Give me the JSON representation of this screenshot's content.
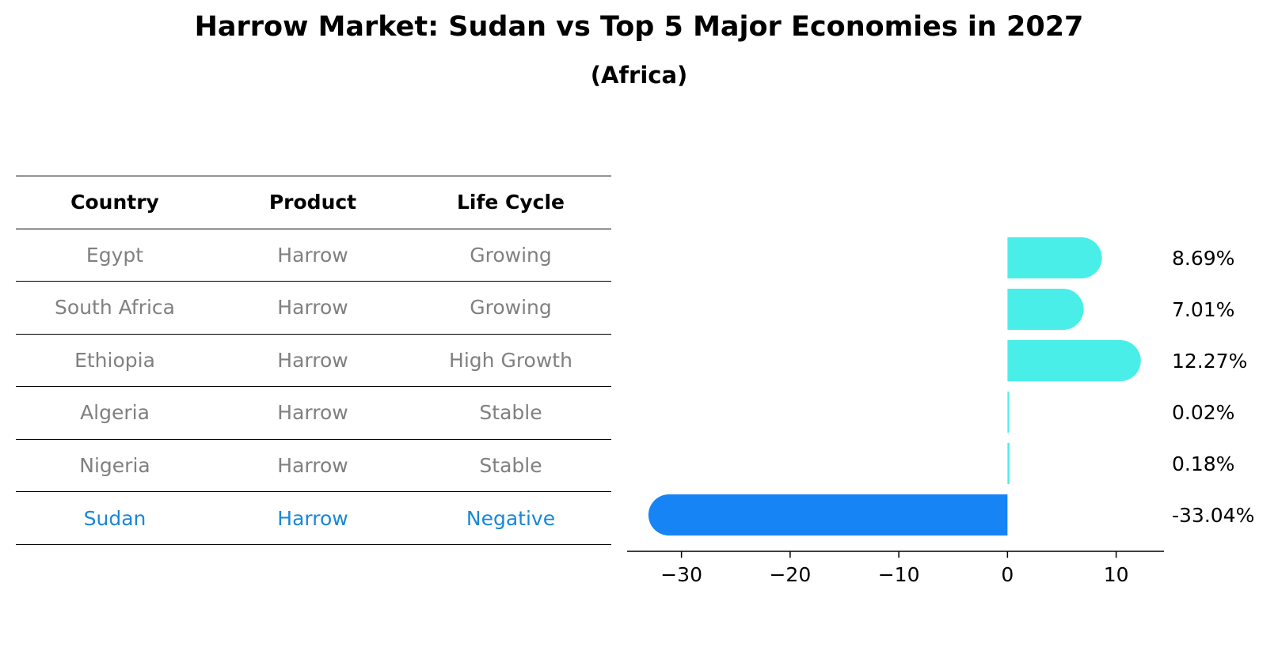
{
  "title": "Harrow Market: Sudan vs Top 5 Major Economies in 2027",
  "subtitle": "(Africa)",
  "table": {
    "headers": [
      "Country",
      "Product",
      "Life Cycle"
    ],
    "rows": [
      [
        "Egypt",
        "Harrow",
        "Growing"
      ],
      [
        "South Africa",
        "Harrow",
        "Growing"
      ],
      [
        "Ethiopia",
        "Harrow",
        "High Growth"
      ],
      [
        "Algeria",
        "Harrow",
        "Stable"
      ],
      [
        "Nigeria",
        "Harrow",
        "Stable"
      ],
      [
        "Sudan",
        "Harrow",
        "Negative"
      ]
    ]
  },
  "colors": {
    "positive": "#4aeee8",
    "negative": "#1684f5",
    "highlight_text": "#1a87d6",
    "muted_text": "#808080"
  },
  "chart_data": {
    "type": "bar",
    "orientation": "horizontal",
    "categories": [
      "Egypt",
      "South Africa",
      "Ethiopia",
      "Algeria",
      "Nigeria",
      "Sudan"
    ],
    "values": [
      8.69,
      7.01,
      12.27,
      0.02,
      0.18,
      -33.04
    ],
    "value_labels": [
      "8.69%",
      "7.01%",
      "12.27%",
      "0.02%",
      "0.18%",
      "-33.04%"
    ],
    "xlim": [
      -35,
      14.4
    ],
    "xticks": [
      -30,
      -20,
      -10,
      0,
      10
    ],
    "xtick_labels": [
      "−30",
      "−20",
      "−10",
      "0",
      "10"
    ],
    "grid": false
  }
}
